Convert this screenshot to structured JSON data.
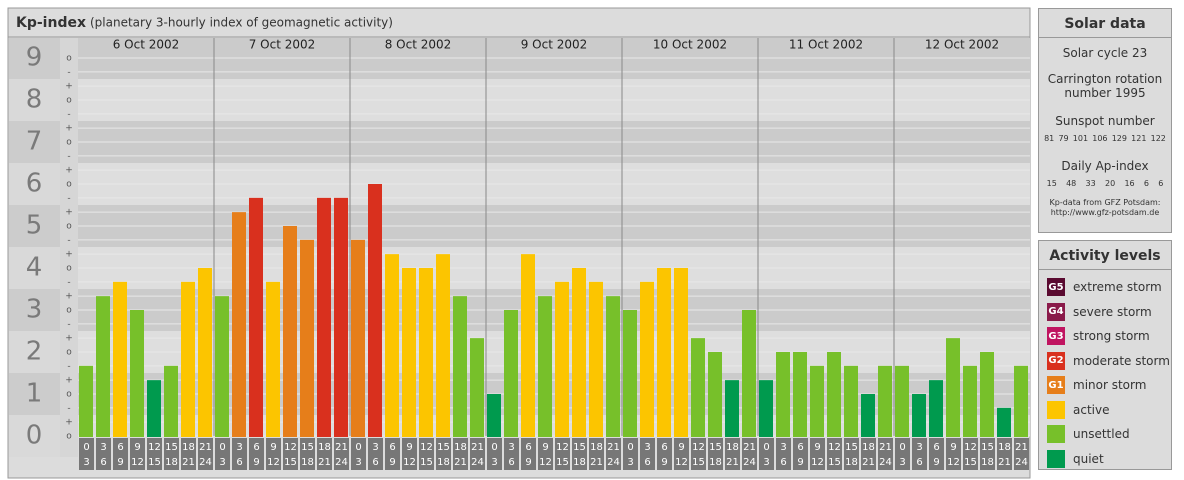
{
  "chart_data": {
    "type": "bar",
    "title": "Kp-index",
    "subtitle": "(planetary 3-hourly index of geomagnetic activity)",
    "days": [
      "6 Oct 2002",
      "7 Oct 2002",
      "8 Oct 2002",
      "9 Oct 2002",
      "10 Oct 2002",
      "11 Oct 2002",
      "12 Oct 2002"
    ],
    "hours": [
      0,
      3,
      6,
      9,
      12,
      15,
      18,
      21,
      24
    ],
    "values": [
      1.67,
      3.33,
      3.67,
      3.0,
      1.33,
      1.67,
      3.67,
      4.0,
      3.33,
      5.33,
      5.67,
      3.67,
      5.0,
      4.67,
      5.67,
      5.67,
      4.67,
      6.0,
      4.33,
      4.0,
      4.0,
      4.33,
      3.33,
      2.33,
      1.0,
      3.0,
      4.33,
      3.33,
      3.67,
      4.0,
      3.67,
      3.33,
      3.0,
      3.67,
      4.0,
      4.0,
      2.33,
      2.0,
      1.33,
      3.0,
      1.33,
      2.0,
      2.0,
      1.67,
      2.0,
      1.67,
      1.0,
      1.67,
      1.67,
      1.0,
      1.33,
      2.33,
      1.67,
      2.0,
      0.67,
      1.67
    ],
    "colors": [
      "#77c02a",
      "#77c02a",
      "#fcc500",
      "#77c02a",
      "#009a4e",
      "#77c02a",
      "#fcc500",
      "#fcc500",
      "#77c02a",
      "#e67e1a",
      "#d9301e",
      "#fcc500",
      "#e67e1a",
      "#e67e1a",
      "#d9301e",
      "#d9301e",
      "#e67e1a",
      "#d9301e",
      "#fcc500",
      "#fcc500",
      "#fcc500",
      "#fcc500",
      "#77c02a",
      "#77c02a",
      "#009a4e",
      "#77c02a",
      "#fcc500",
      "#77c02a",
      "#fcc500",
      "#fcc500",
      "#fcc500",
      "#77c02a",
      "#77c02a",
      "#fcc500",
      "#fcc500",
      "#fcc500",
      "#77c02a",
      "#77c02a",
      "#009a4e",
      "#77c02a",
      "#009a4e",
      "#77c02a",
      "#77c02a",
      "#77c02a",
      "#77c02a",
      "#77c02a",
      "#009a4e",
      "#77c02a",
      "#77c02a",
      "#009a4e",
      "#009a4e",
      "#77c02a",
      "#77c02a",
      "#77c02a",
      "#009a4e",
      "#77c02a"
    ],
    "ylim": [
      0,
      9.5
    ],
    "yticks": [
      0,
      1,
      2,
      3,
      4,
      5,
      6,
      7,
      8,
      9
    ],
    "minor_ticks": [
      {
        "value": 0,
        "label": "o"
      },
      {
        "value": 0.33,
        "label": "+"
      },
      {
        "value": 0.67,
        "label": "-"
      },
      {
        "value": 1,
        "label": "o"
      },
      {
        "value": 1.33,
        "label": "+"
      },
      {
        "value": 1.67,
        "label": "-"
      },
      {
        "value": 2,
        "label": "o"
      },
      {
        "value": 2.33,
        "label": "+"
      },
      {
        "value": 2.67,
        "label": "-"
      },
      {
        "value": 3,
        "label": "o"
      },
      {
        "value": 3.33,
        "label": "+"
      },
      {
        "value": 3.67,
        "label": "-"
      },
      {
        "value": 4,
        "label": "o"
      },
      {
        "value": 4.33,
        "label": "+"
      },
      {
        "value": 4.67,
        "label": "-"
      },
      {
        "value": 5,
        "label": "o"
      },
      {
        "value": 5.33,
        "label": "+"
      },
      {
        "value": 5.67,
        "label": "-"
      },
      {
        "value": 6,
        "label": "o"
      },
      {
        "value": 6.33,
        "label": "+"
      },
      {
        "value": 6.67,
        "label": "-"
      },
      {
        "value": 7,
        "label": "o"
      },
      {
        "value": 7.33,
        "label": "+"
      },
      {
        "value": 7.67,
        "label": "-"
      },
      {
        "value": 8,
        "label": "o"
      },
      {
        "value": 8.33,
        "label": "+"
      },
      {
        "value": 8.67,
        "label": "-"
      },
      {
        "value": 9,
        "label": "o"
      }
    ],
    "grid": true
  },
  "solar_data": {
    "title": "Solar data",
    "cycle": "Solar cycle 23",
    "carrington": "Carrington rotation number 1995",
    "sunspot_title": "Sunspot number",
    "sunspot": [
      81,
      79,
      101,
      106,
      129,
      121,
      122
    ],
    "ap_title": "Daily Ap-index",
    "ap": [
      15,
      48,
      33,
      20,
      16,
      6,
      6
    ],
    "source": "Kp-data from GFZ Potsdam:",
    "url": "http://www.gfz-potsdam.de"
  },
  "activity_levels": {
    "title": "Activity levels",
    "items": [
      {
        "badge": "G5",
        "label": "extreme storm",
        "color": "#5a0a30"
      },
      {
        "badge": "G4",
        "label": "severe storm",
        "color": "#8a1a4a"
      },
      {
        "badge": "G3",
        "label": "strong storm",
        "color": "#c01460"
      },
      {
        "badge": "G2",
        "label": "moderate storm",
        "color": "#d9301e"
      },
      {
        "badge": "G1",
        "label": "minor storm",
        "color": "#e67e1a"
      },
      {
        "label": "active",
        "color": "#fcc500"
      },
      {
        "label": "unsettled",
        "color": "#77c02a"
      },
      {
        "label": "quiet",
        "color": "#009a4e"
      }
    ]
  }
}
